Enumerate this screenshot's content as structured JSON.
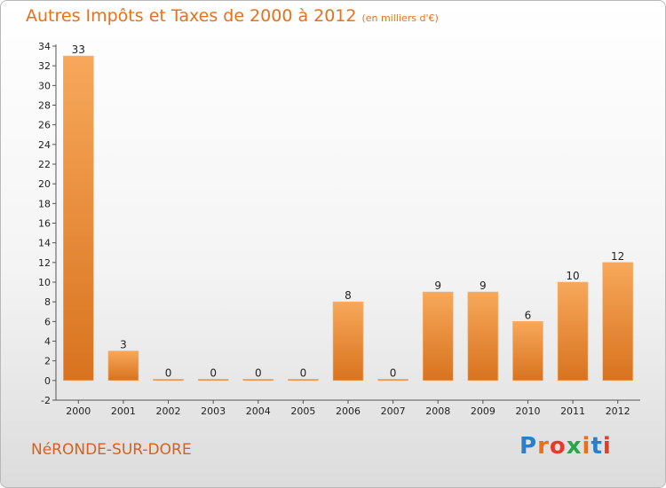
{
  "title": "Autres Impôts et Taxes de 2000 à 2012",
  "unit": "(en milliers d'€)",
  "commune": "NéRONDE-SUR-DORE",
  "logo": {
    "text": "Proxiti",
    "colors": [
      "#2a7fc9",
      "#e8701a",
      "#e83a2a",
      "#2aa64a",
      "#e8701a",
      "#2a7fc9",
      "#e83a2a"
    ]
  },
  "colors": {
    "bar_light": "#f7a85a",
    "bar_dark": "#d8731f",
    "title": "#e8701a"
  },
  "chart_data": {
    "type": "bar",
    "categories": [
      "2000",
      "2001",
      "2002",
      "2003",
      "2004",
      "2005",
      "2006",
      "2007",
      "2008",
      "2009",
      "2010",
      "2011",
      "2012"
    ],
    "values": [
      33,
      3,
      0,
      0,
      0,
      0,
      8,
      0,
      9,
      9,
      6,
      10,
      12
    ],
    "data_labels": [
      "33",
      "3",
      "0",
      "0",
      "0",
      "0",
      "8",
      "0",
      "9",
      "9",
      "6",
      "10",
      "12"
    ],
    "yticks": [
      -2,
      0,
      2,
      4,
      6,
      8,
      10,
      12,
      14,
      16,
      18,
      20,
      22,
      24,
      26,
      28,
      30,
      32,
      34
    ],
    "ylim": [
      -2,
      34
    ],
    "grid": false,
    "xlabel": "",
    "ylabel": ""
  }
}
